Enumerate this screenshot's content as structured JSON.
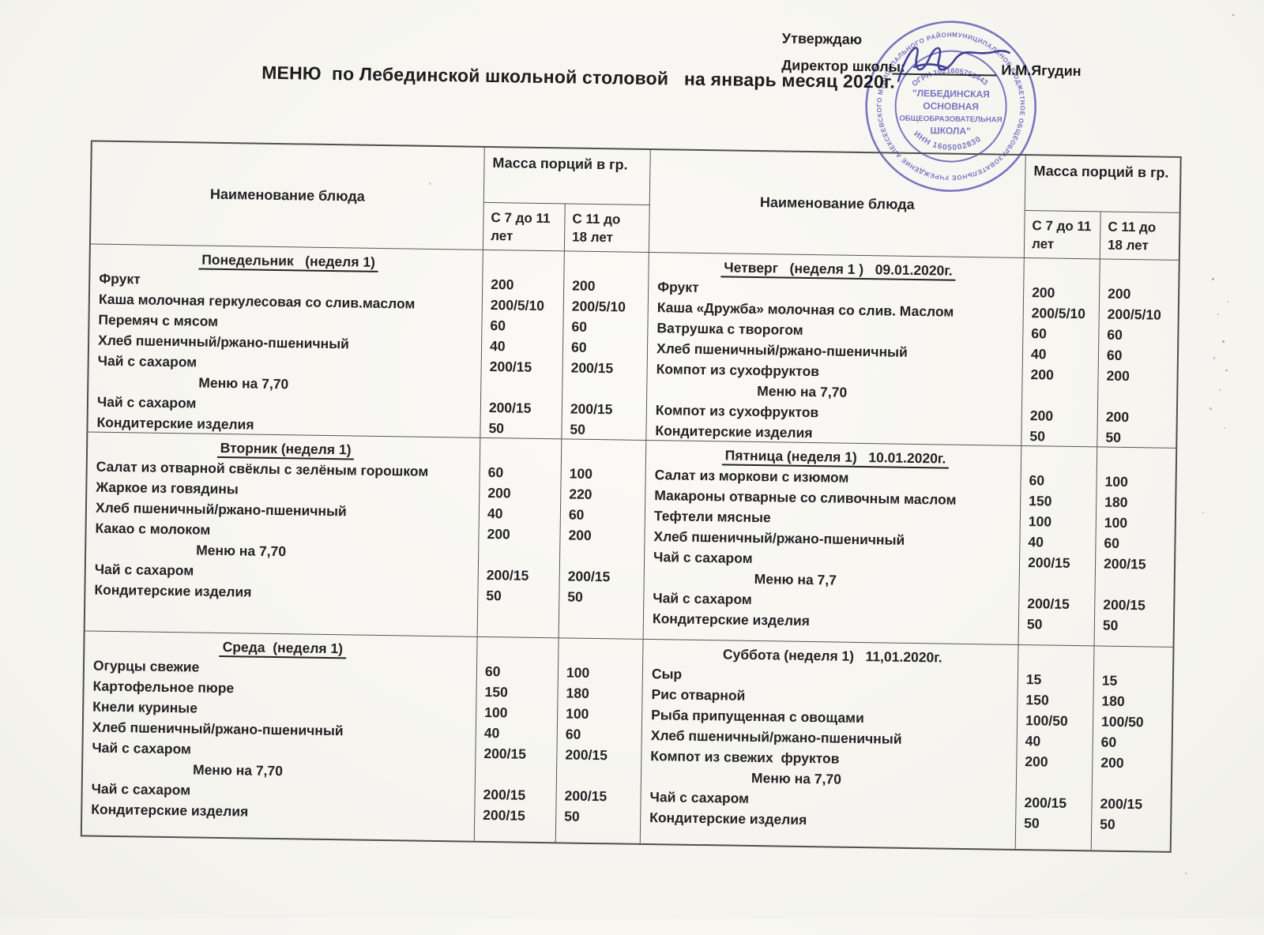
{
  "title": "МЕНЮ  по Лебединской школьной столовой   на январь месяц 2020г.",
  "approval": {
    "approve_label": "Утверждаю",
    "director_label": "Директор школы:",
    "director_name": "И.М.Ягудин"
  },
  "stamp": {
    "ring_text": "МУНИЦИПАЛЬНОЕ БЮДЖЕТНОЕ ОБЩЕОБРАЗОВАТЕЛЬНОЕ УЧРЕЖДЕНИЕ АЛЕКСЕЕВСКОГО МУНИЦИПАЛЬНОГО РАЙОНА РТ • ТР АЛЕКСЕЕВСК МУНИЦИПАЛЬ РАЙОНЫ БЕЛЕМ БИРҮ УЧРЕЖДЕНИЕСЕ",
    "ogrn": "ОГРН 1021605753443",
    "name_lines": [
      "\"ЛЕБЕДИНСКАЯ",
      "ОСНОВНАЯ",
      "ОБЩЕОБРАЗОВАТЕЛЬНАЯ",
      "ШКОЛА\""
    ],
    "inn": "ИНН 1605002830"
  },
  "table_header": {
    "dish": "Наименование блюда",
    "mass": "Масса порций в гр.",
    "age_young": "С 7 до 11 лет",
    "age_old": "С 11 до 18 лет"
  },
  "menu": {
    "monday": {
      "title": "Понедельник   (неделя 1)",
      "underline": true,
      "items": [
        {
          "n": "Фрукт",
          "a": "200",
          "b": "200"
        },
        {
          "n": "Каша молочная геркулесовая со слив.маслом",
          "a": "200/5/10",
          "b": "200/5/10"
        },
        {
          "n": "Перемяч с мясом",
          "a": "60",
          "b": "60"
        },
        {
          "n": "Хлеб пшеничный/ржано-пшеничный",
          "a": "40",
          "b": "60"
        },
        {
          "n": "Чай с сахаром",
          "a": "200/15",
          "b": "200/15"
        },
        {
          "n": "Меню на 7,70",
          "menu": true
        },
        {
          "n": "Чай с сахаром",
          "a": "200/15",
          "b": "200/15"
        },
        {
          "n": "Кондитерские изделия",
          "a": "50",
          "b": "50"
        }
      ]
    },
    "tuesday": {
      "title": "Вторник (неделя 1)",
      "underline": true,
      "items": [
        {
          "n": "Салат из отварной свёклы с зелёным горошком",
          "a": "60",
          "b": "100"
        },
        {
          "n": "Жаркое из говядины",
          "a": "200",
          "b": "220"
        },
        {
          "n": "Хлеб пшеничный/ржано-пшеничный",
          "a": "40",
          "b": "60"
        },
        {
          "n": "Какао с молоком",
          "a": "200",
          "b": "200"
        },
        {
          "n": "Меню на 7,70",
          "menu": true
        },
        {
          "n": "Чай с сахаром",
          "a": "200/15",
          "b": "200/15"
        },
        {
          "n": "Кондитерские изделия",
          "a": "50",
          "b": "50"
        }
      ]
    },
    "wednesday": {
      "title": "Среда  (неделя 1)",
      "underline": true,
      "items": [
        {
          "n": "Огурцы свежие",
          "a": "60",
          "b": "100"
        },
        {
          "n": "Картофельное пюре",
          "a": "150",
          "b": "180"
        },
        {
          "n": "Кнели куриные",
          "a": "100",
          "b": "100"
        },
        {
          "n": "Хлеб пшеничный/ржано-пшеничный",
          "a": "40",
          "b": "60"
        },
        {
          "n": "Чай с сахаром",
          "a": "200/15",
          "b": "200/15"
        },
        {
          "n": "Меню на 7,70",
          "menu": true
        },
        {
          "n": "Чай с сахаром",
          "a": "200/15",
          "b": "200/15"
        },
        {
          "n": "Кондитерские изделия",
          "a": "200/15",
          "b": "50"
        }
      ]
    },
    "thursday": {
      "title": "Четверг   (неделя 1 )   09.01.2020г.",
      "underline": true,
      "items": [
        {
          "n": "Фрукт",
          "a": "200",
          "b": "200"
        },
        {
          "n": "Каша «Дружба» молочная со слив. Маслом",
          "a": "200/5/10",
          "b": "200/5/10"
        },
        {
          "n": "Ватрушка с творогом",
          "a": "60",
          "b": "60"
        },
        {
          "n": "Хлеб пшеничный/ржано-пшеничный",
          "a": "40",
          "b": "60"
        },
        {
          "n": "Компот из сухофруктов",
          "a": "200",
          "b": "200"
        },
        {
          "n": "Меню на 7,70",
          "menu": true
        },
        {
          "n": "Компот из сухофруктов",
          "a": "200",
          "b": "200"
        },
        {
          "n": "Кондитерские изделия",
          "a": "50",
          "b": "50"
        }
      ]
    },
    "friday": {
      "title": "Пятница (неделя 1)   10.01.2020г.",
      "underline": true,
      "items": [
        {
          "n": "Салат из моркови с изюмом",
          "a": "60",
          "b": "100"
        },
        {
          "n": "Макароны отварные со сливочным маслом",
          "a": "150",
          "b": "180"
        },
        {
          "n": "Тефтели мясные",
          "a": "100",
          "b": "100"
        },
        {
          "n": "Хлеб пшеничный/ржано-пшеничный",
          "a": "40",
          "b": "60"
        },
        {
          "n": "Чай с сахаром",
          "a": "200/15",
          "b": "200/15"
        },
        {
          "n": "Меню на 7,7",
          "menu": true
        },
        {
          "n": "Чай с сахаром",
          "a": "200/15",
          "b": "200/15"
        },
        {
          "n": "Кондитерские изделия",
          "a": "50",
          "b": "50"
        }
      ]
    },
    "saturday": {
      "title": "Суббота (неделя 1)   11,01.2020г.",
      "underline": false,
      "items": [
        {
          "n": "Сыр",
          "a": "15",
          "b": "15"
        },
        {
          "n": "Рис отварной",
          "a": "150",
          "b": "180"
        },
        {
          "n": "Рыба припущенная с овощами",
          "a": "100/50",
          "b": "100/50"
        },
        {
          "n": "Хлеб пшеничный/ржано-пшеничный",
          "a": "40",
          "b": "60"
        },
        {
          "n": "Компот из свежих  фруктов",
          "a": "200",
          "b": "200"
        },
        {
          "n": "Меню на 7,70",
          "menu": true
        },
        {
          "n": "Чай с сахаром",
          "a": "200/15",
          "b": "200/15"
        },
        {
          "n": "Кондитерские изделия",
          "a": "50",
          "b": "50"
        }
      ]
    }
  }
}
